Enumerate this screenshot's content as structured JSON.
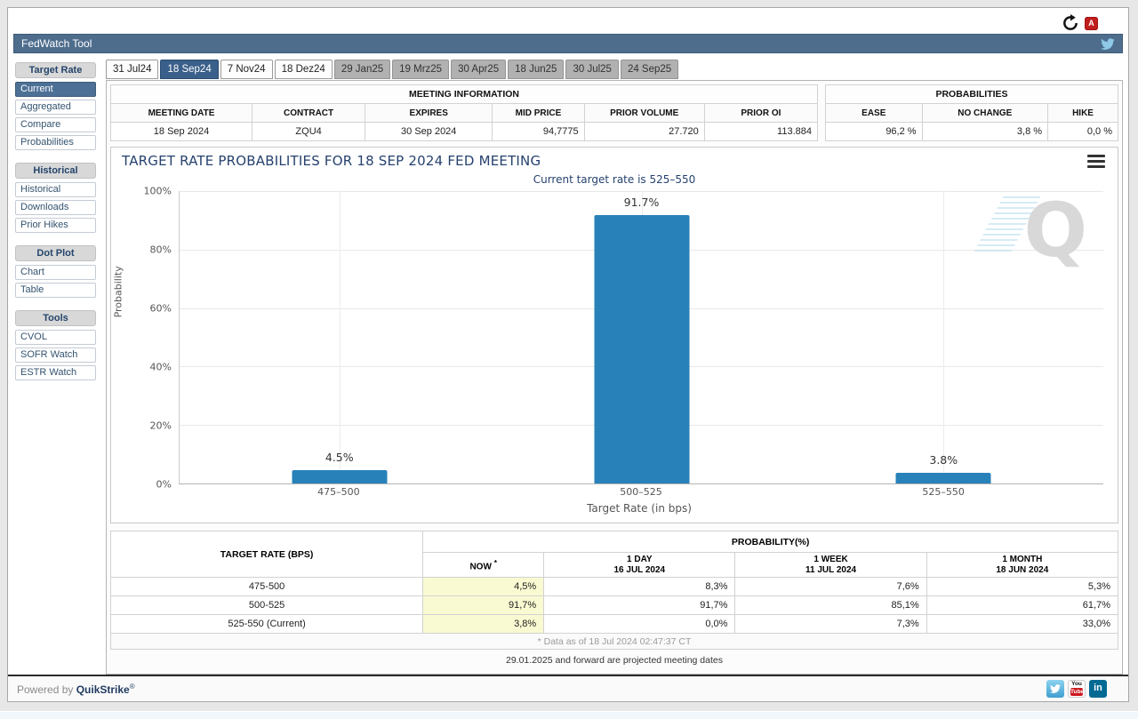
{
  "header": {
    "title": "FedWatch Tool"
  },
  "tabs": [
    "31 Jul24",
    "18 Sep24",
    "7 Nov24",
    "18 Dez24",
    "29 Jan25",
    "19 Mrz25",
    "30 Apr25",
    "18 Jun25",
    "30 Jul25",
    "24 Sep25"
  ],
  "sidebar": {
    "sections": [
      {
        "header": "Target Rate",
        "items": [
          "Current",
          "Aggregated",
          "Compare",
          "Probabilities"
        ]
      },
      {
        "header": "Historical",
        "items": [
          "Historical",
          "Downloads",
          "Prior Hikes"
        ]
      },
      {
        "header": "Dot Plot",
        "items": [
          "Chart",
          "Table"
        ]
      },
      {
        "header": "Tools",
        "items": [
          "CVOL",
          "SOFR Watch",
          "ESTR Watch"
        ]
      }
    ],
    "selected_item": "Current"
  },
  "meeting_info": {
    "title": "MEETING INFORMATION",
    "headers": [
      "MEETING DATE",
      "CONTRACT",
      "EXPIRES",
      "MID PRICE",
      "PRIOR VOLUME",
      "PRIOR OI"
    ],
    "row": [
      "18 Sep 2024",
      "ZQU4",
      "30 Sep 2024",
      "94,7775",
      "27.720",
      "113.884"
    ]
  },
  "prob_summary": {
    "title": "PROBABILITIES",
    "headers": [
      "EASE",
      "NO CHANGE",
      "HIKE"
    ],
    "row": [
      "96,2 %",
      "3,8 %",
      "0,0 %"
    ]
  },
  "chart_data": {
    "type": "bar",
    "title": "TARGET RATE PROBABILITIES FOR 18 SEP 2024 FED MEETING",
    "subtitle": "Current target rate is 525–550",
    "categories": [
      "475–500",
      "500–525",
      "525–550"
    ],
    "values": [
      4.5,
      91.7,
      3.8
    ],
    "labels": [
      "4.5%",
      "91.7%",
      "3.8%"
    ],
    "xlabel": "Target Rate (in bps)",
    "ylabel": "Probability",
    "ylim": [
      0,
      100
    ],
    "yticks": [
      "100%",
      "80%",
      "60%",
      "40%",
      "20%",
      "0%"
    ],
    "bar_color": "#2881b9",
    "grid": true,
    "legend": "none"
  },
  "prob_table": {
    "corner_header": "TARGET RATE (BPS)",
    "group_header": "PROBABILITY(%)",
    "now_label": "NOW",
    "now_sup": "*",
    "cols": [
      {
        "l1": "1 DAY",
        "l2": "16 JUL 2024"
      },
      {
        "l1": "1 WEEK",
        "l2": "11 JUL 2024"
      },
      {
        "l1": "1 MONTH",
        "l2": "18 JUN 2024"
      }
    ],
    "rows": [
      [
        "475-500",
        "4,5%",
        "8,3%",
        "7,6%",
        "5,3%"
      ],
      [
        "500-525",
        "91,7%",
        "91,7%",
        "85,1%",
        "61,7%"
      ],
      [
        "525-550 (Current)",
        "3,8%",
        "0,0%",
        "7,3%",
        "33,0%"
      ]
    ],
    "footnote": "* Data as of 18 Jul 2024 02:47:37 CT",
    "projection_note": "29.01.2025 and forward are projected meeting dates"
  },
  "footer": {
    "powered_by": "Powered by ",
    "brand": "QuikStrike",
    "reg": "®"
  },
  "colors": {
    "header_slate": "#4e6d8d",
    "selected_tab": "#3a5f8a",
    "sidebar_selected": "#4d7096",
    "bar_blue": "#2881b9",
    "title_navy": "#26426e",
    "highlight_yellow": "#fafad2",
    "projected_tab_gray": "#b1b1b1"
  }
}
